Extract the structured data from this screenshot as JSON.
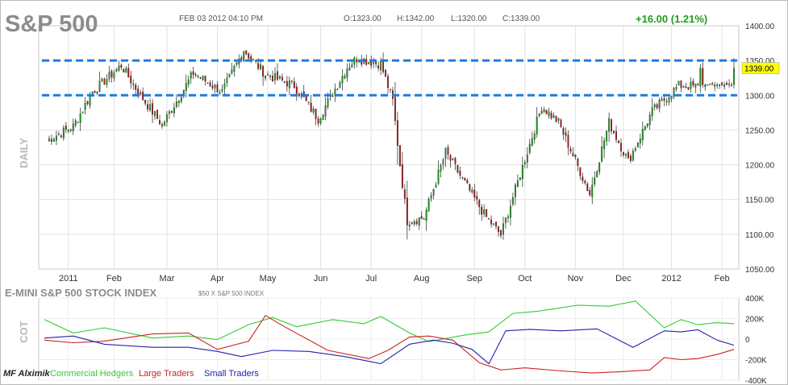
{
  "header": {
    "title": "S&P 500",
    "datetime": "FEB 03 2012 04:10 PM",
    "open": "O:1323.00",
    "high": "H:1342.00",
    "low": "L:1320.00",
    "close": "C:1339.00",
    "change": "+16.00 (1.21%)",
    "price_tag": "1339.00"
  },
  "panels": {
    "price_side_label": "DAILY",
    "cot_title": "E-MINI S&P 500 STOCK INDEX",
    "cot_note": "$50 X S&P 500 INDEX",
    "cot_side_label": "COT",
    "watermark": "MF Alximik"
  },
  "colors": {
    "up": "#1a9e1a",
    "down": "#b01414",
    "commercial": "#33cc33",
    "large": "#cc2222",
    "small": "#2222aa",
    "trendline": "#1e7be0",
    "tag": "#ffff00"
  },
  "chart_data": [
    {
      "type": "candlestick",
      "title": "S&P 500",
      "x_tick_labels": [
        "2011",
        "Feb",
        "Mar",
        "Apr",
        "May",
        "Jun",
        "Jul",
        "Aug",
        "Sep",
        "Oct",
        "Nov",
        "Dec",
        "2012",
        "Feb"
      ],
      "y_ticks": [
        1050,
        1100,
        1150,
        1200,
        1250,
        1300,
        1350,
        1400
      ],
      "ylim": [
        1050,
        1400
      ],
      "horizontal_lines": [
        1350,
        1300
      ],
      "last_price": 1339,
      "grid": true,
      "anchor_closes": [
        {
          "date": "Jan 03",
          "close": 1235
        },
        {
          "date": "Jan 18",
          "close": 1255
        },
        {
          "date": "Feb 01",
          "close": 1305
        },
        {
          "date": "Feb 18",
          "close": 1343
        },
        {
          "date": "Mar 01",
          "close": 1305
        },
        {
          "date": "Mar 16",
          "close": 1257
        },
        {
          "date": "Apr 01",
          "close": 1332
        },
        {
          "date": "Apr 18",
          "close": 1305
        },
        {
          "date": "May 02",
          "close": 1365
        },
        {
          "date": "May 16",
          "close": 1330
        },
        {
          "date": "Jun 01",
          "close": 1314
        },
        {
          "date": "Jun 15",
          "close": 1266
        },
        {
          "date": "Jul 01",
          "close": 1340
        },
        {
          "date": "Jul 07",
          "close": 1353
        },
        {
          "date": "Jul 21",
          "close": 1345
        },
        {
          "date": "Jul 29",
          "close": 1292
        },
        {
          "date": "Aug 04",
          "close": 1200
        },
        {
          "date": "Aug 08",
          "close": 1119
        },
        {
          "date": "Aug 19",
          "close": 1124
        },
        {
          "date": "Aug 31",
          "close": 1218
        },
        {
          "date": "Sep 22",
          "close": 1129
        },
        {
          "date": "Oct 03",
          "close": 1099
        },
        {
          "date": "Oct 27",
          "close": 1284
        },
        {
          "date": "Nov 07",
          "close": 1261
        },
        {
          "date": "Nov 25",
          "close": 1158
        },
        {
          "date": "Dec 07",
          "close": 1261
        },
        {
          "date": "Dec 19",
          "close": 1205
        },
        {
          "date": "Jan 03",
          "close": 1277
        },
        {
          "date": "Jan 19",
          "close": 1314
        },
        {
          "date": "Jan 31",
          "close": 1312
        },
        {
          "date": "Feb 03",
          "close": 1339
        }
      ]
    },
    {
      "type": "line",
      "title": "E-MINI S&P 500 STOCK INDEX",
      "x_tick_labels": [
        "2011",
        "Feb",
        "Mar",
        "Apr",
        "May",
        "Jun",
        "Jul",
        "Aug",
        "Sep",
        "Oct",
        "Nov",
        "Dec",
        "2012",
        "Feb"
      ],
      "y_tick_labels": [
        "400K",
        "200K",
        "0",
        "-200K",
        "-400K"
      ],
      "y_ticks": [
        400000,
        200000,
        0,
        -200000,
        -400000
      ],
      "ylim": [
        -400000,
        400000
      ],
      "series": [
        {
          "name": "Commercial Hedgers",
          "points": [
            [
              0,
              190000
            ],
            [
              12,
              60000
            ],
            [
              25,
              110000
            ],
            [
              45,
              10000
            ],
            [
              60,
              30000
            ],
            [
              72,
              -5000
            ],
            [
              85,
              140000
            ],
            [
              95,
              210000
            ],
            [
              105,
              120000
            ],
            [
              120,
              190000
            ],
            [
              133,
              150000
            ],
            [
              140,
              220000
            ],
            [
              152,
              60000
            ],
            [
              160,
              -25000
            ],
            [
              175,
              40000
            ],
            [
              185,
              70000
            ],
            [
              195,
              250000
            ],
            [
              205,
              270000
            ],
            [
              222,
              330000
            ],
            [
              235,
              320000
            ],
            [
              246,
              370000
            ],
            [
              258,
              110000
            ],
            [
              265,
              190000
            ],
            [
              272,
              140000
            ],
            [
              280,
              160000
            ],
            [
              287,
              150000
            ]
          ]
        },
        {
          "name": "Large Traders",
          "points": [
            [
              0,
              -10000
            ],
            [
              12,
              -35000
            ],
            [
              25,
              -20000
            ],
            [
              45,
              50000
            ],
            [
              60,
              60000
            ],
            [
              72,
              -100000
            ],
            [
              85,
              -20000
            ],
            [
              92,
              230000
            ],
            [
              100,
              120000
            ],
            [
              118,
              -110000
            ],
            [
              135,
              -190000
            ],
            [
              143,
              -110000
            ],
            [
              152,
              20000
            ],
            [
              160,
              30000
            ],
            [
              170,
              -10000
            ],
            [
              181,
              -230000
            ],
            [
              190,
              -300000
            ],
            [
              200,
              -280000
            ],
            [
              215,
              -310000
            ],
            [
              228,
              -330000
            ],
            [
              238,
              -320000
            ],
            [
              252,
              -300000
            ],
            [
              258,
              -180000
            ],
            [
              265,
              -200000
            ],
            [
              272,
              -190000
            ],
            [
              280,
              -150000
            ],
            [
              287,
              -100000
            ]
          ]
        },
        {
          "name": "Small Traders",
          "points": [
            [
              0,
              10000
            ],
            [
              12,
              30000
            ],
            [
              25,
              -50000
            ],
            [
              45,
              -80000
            ],
            [
              60,
              -80000
            ],
            [
              72,
              -120000
            ],
            [
              82,
              -170000
            ],
            [
              95,
              -110000
            ],
            [
              110,
              -120000
            ],
            [
              125,
              -170000
            ],
            [
              140,
              -240000
            ],
            [
              152,
              -50000
            ],
            [
              162,
              -10000
            ],
            [
              170,
              -40000
            ],
            [
              178,
              -100000
            ],
            [
              185,
              -240000
            ],
            [
              192,
              80000
            ],
            [
              202,
              95000
            ],
            [
              215,
              80000
            ],
            [
              230,
              100000
            ],
            [
              245,
              -80000
            ],
            [
              258,
              80000
            ],
            [
              265,
              70000
            ],
            [
              272,
              90000
            ],
            [
              280,
              -10000
            ],
            [
              287,
              -60000
            ]
          ]
        }
      ]
    }
  ]
}
